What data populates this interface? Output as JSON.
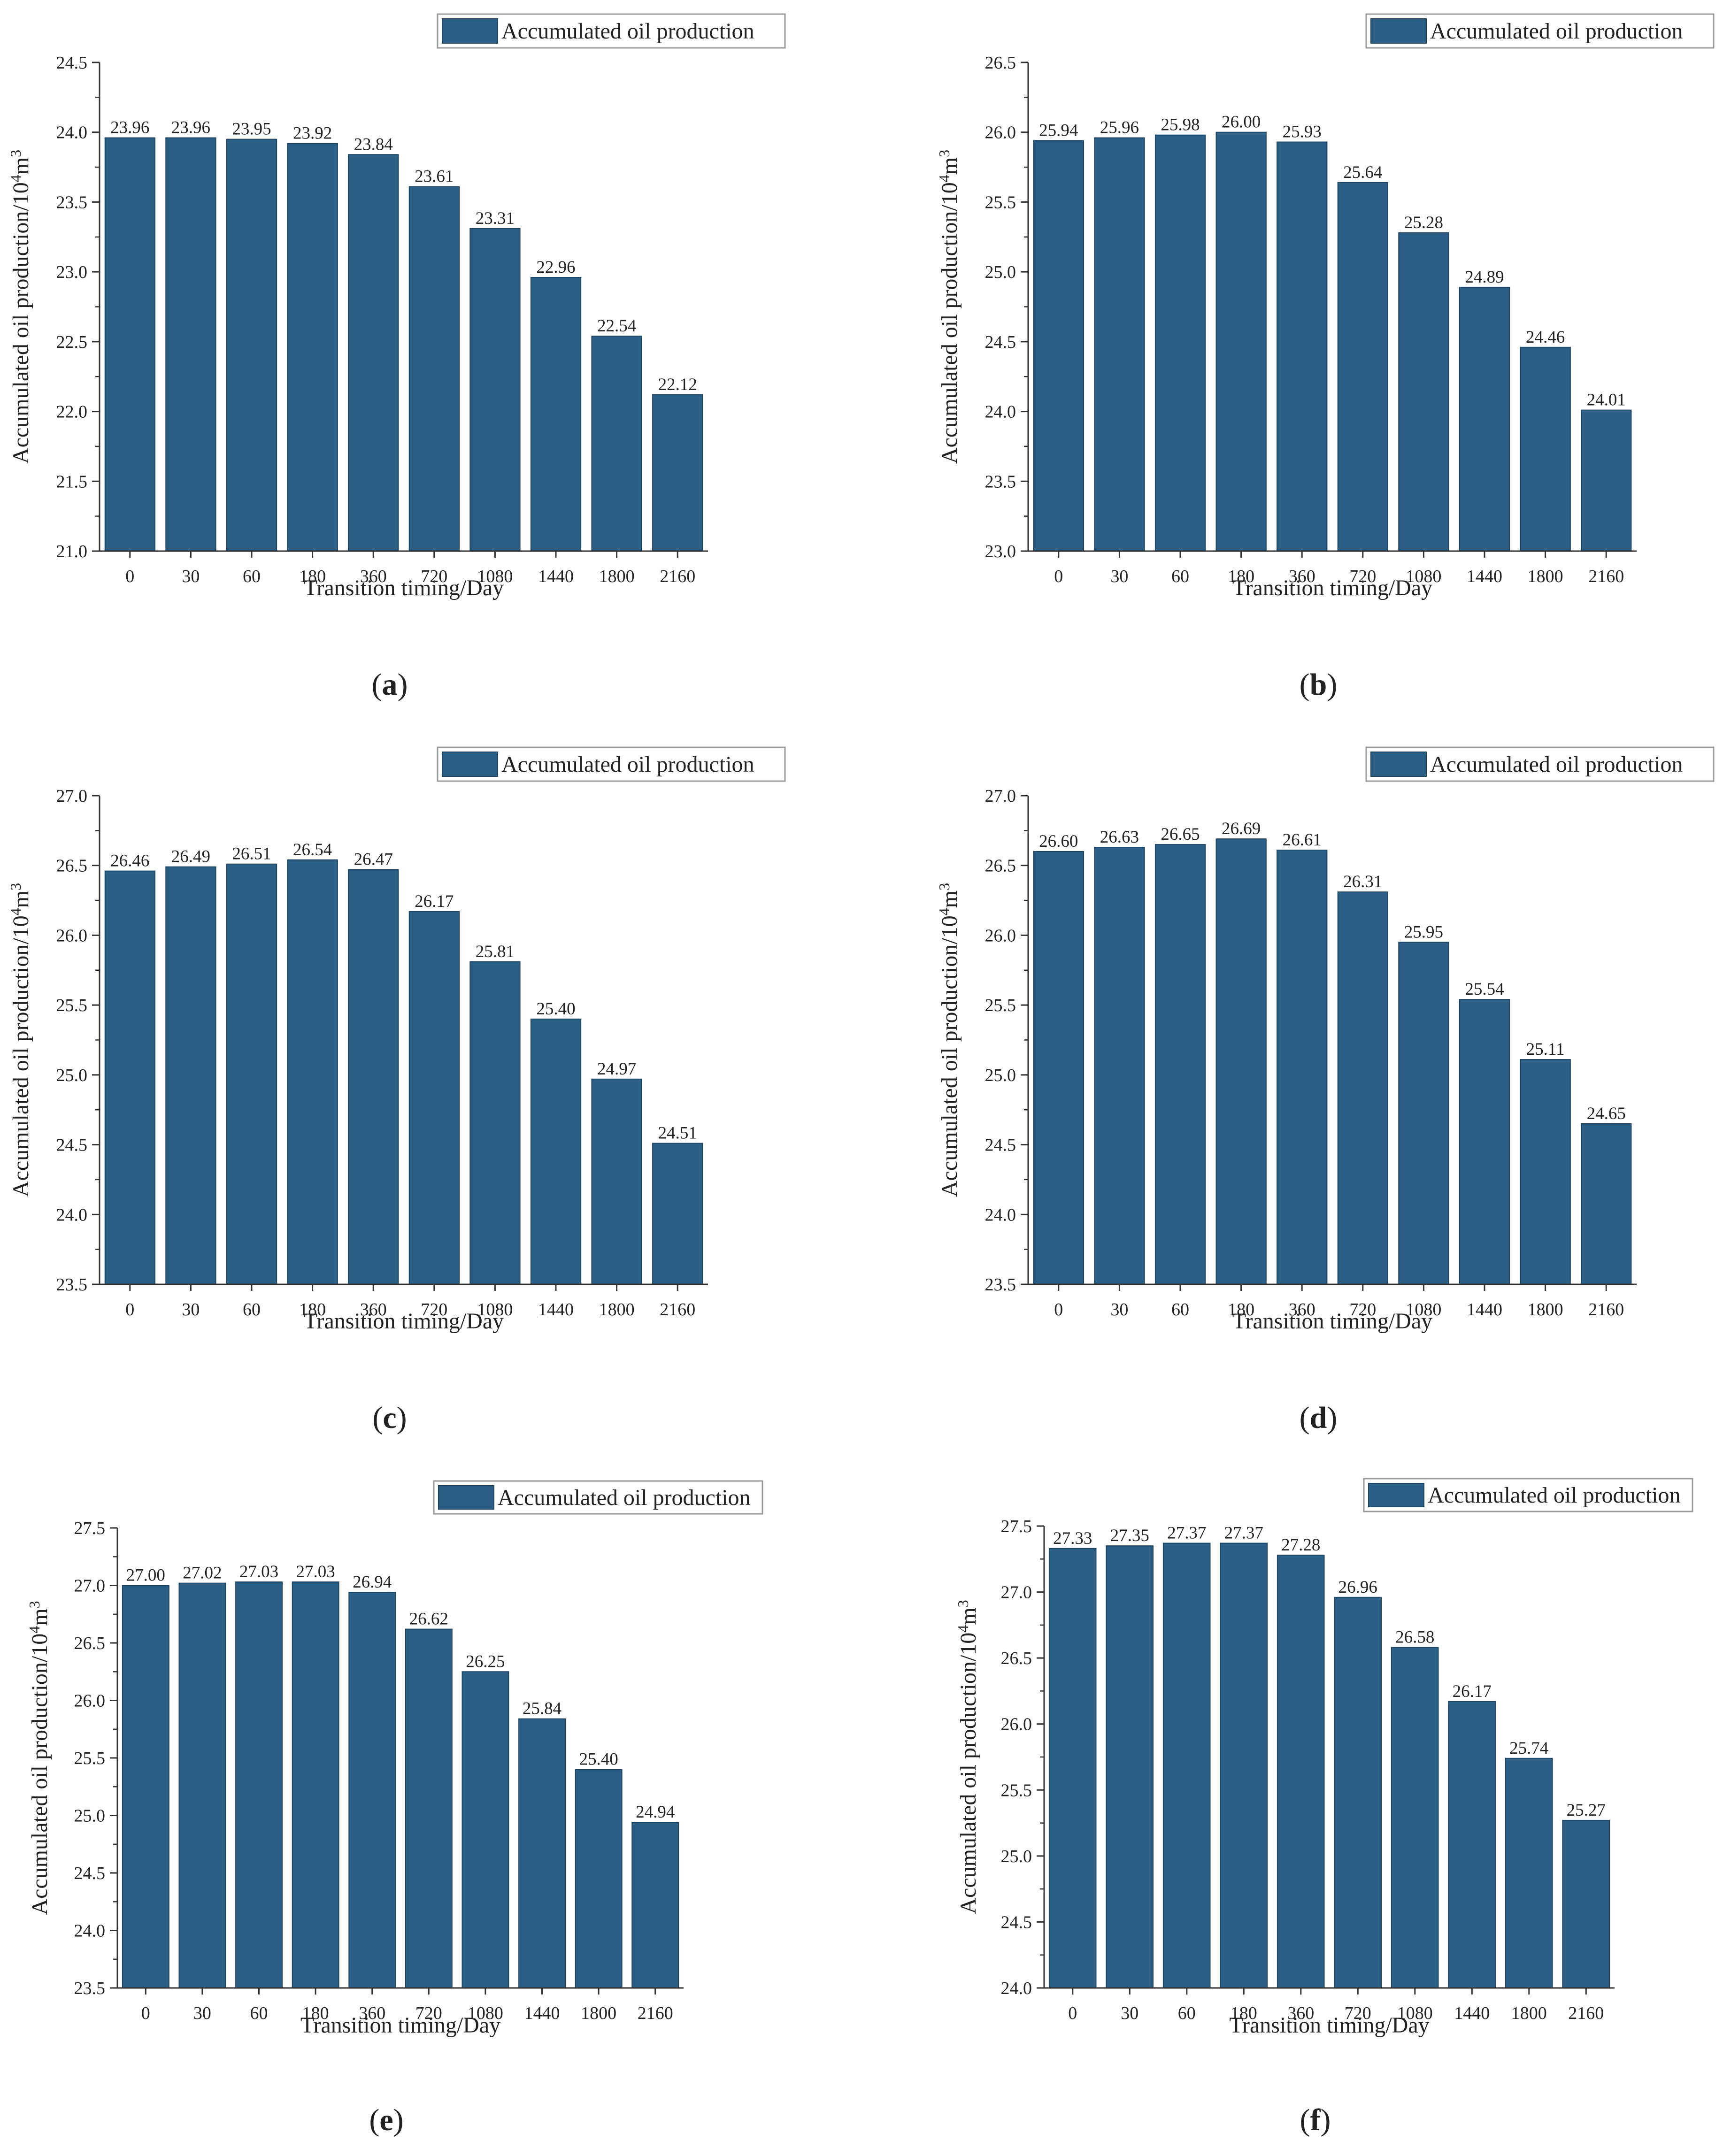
{
  "figure": {
    "bar_color": "#2b5f86",
    "axis_color": "#333333",
    "legend_border_color": "#9a9a9a"
  },
  "chart_data": [
    {
      "panel": "a",
      "type": "bar",
      "categories": [
        "0",
        "30",
        "60",
        "180",
        "360",
        "720",
        "1080",
        "1440",
        "1800",
        "2160"
      ],
      "series": [
        {
          "name": "Accumulated oil production",
          "values": [
            23.96,
            23.96,
            23.95,
            23.92,
            23.84,
            23.61,
            23.31,
            22.96,
            22.54,
            22.12
          ]
        }
      ],
      "value_labels": [
        "23.96",
        "23.96",
        "23.95",
        "23.92",
        "23.84",
        "23.61",
        "23.31",
        "22.96",
        "22.54",
        "22.12"
      ],
      "xlabel": "Transition timing/Day",
      "ylabel_main": "Accumulated oil production/10",
      "ylabel_sup1": "4",
      "ylabel_mid": "m",
      "ylabel_sup2": "3",
      "ylim": [
        21.0,
        24.5
      ],
      "yticks": [
        "21.0",
        "21.5",
        "22.0",
        "22.5",
        "23.0",
        "23.5",
        "24.0",
        "24.5"
      ],
      "legend": "Accumulated oil production",
      "legend_position": "top-right",
      "grid": false
    },
    {
      "panel": "b",
      "type": "bar",
      "categories": [
        "0",
        "30",
        "60",
        "180",
        "360",
        "720",
        "1080",
        "1440",
        "1800",
        "2160"
      ],
      "series": [
        {
          "name": "Accumulated oil production",
          "values": [
            25.94,
            25.96,
            25.98,
            26.0,
            25.93,
            25.64,
            25.28,
            24.89,
            24.46,
            24.01
          ]
        }
      ],
      "value_labels": [
        "25.94",
        "25.96",
        "25.98",
        "26.00",
        "25.93",
        "25.64",
        "25.28",
        "24.89",
        "24.46",
        "24.01"
      ],
      "xlabel": "Transition timing/Day",
      "ylabel_main": "Accumulated oil production/10",
      "ylabel_sup1": "4",
      "ylabel_mid": "m",
      "ylabel_sup2": "3",
      "ylim": [
        23.0,
        26.5
      ],
      "yticks": [
        "23.0",
        "23.5",
        "24.0",
        "24.5",
        "25.0",
        "25.5",
        "26.0",
        "26.5"
      ],
      "legend": "Accumulated oil production",
      "legend_position": "top-right",
      "grid": false
    },
    {
      "panel": "c",
      "type": "bar",
      "categories": [
        "0",
        "30",
        "60",
        "180",
        "360",
        "720",
        "1080",
        "1440",
        "1800",
        "2160"
      ],
      "series": [
        {
          "name": "Accumulated oil production",
          "values": [
            26.46,
            26.49,
            26.51,
            26.54,
            26.47,
            26.17,
            25.81,
            25.4,
            24.97,
            24.51
          ]
        }
      ],
      "value_labels": [
        "26.46",
        "26.49",
        "26.51",
        "26.54",
        "26.47",
        "26.17",
        "25.81",
        "25.40",
        "24.97",
        "24.51"
      ],
      "xlabel": "Transition timing/Day",
      "ylabel_main": "Accumulated oil production/10",
      "ylabel_sup1": "4",
      "ylabel_mid": "m",
      "ylabel_sup2": "3",
      "ylim": [
        23.5,
        27.0
      ],
      "yticks": [
        "23.5",
        "24.0",
        "24.5",
        "25.0",
        "25.5",
        "26.0",
        "26.5",
        "27.0"
      ],
      "legend": "Accumulated oil production",
      "legend_position": "top-right",
      "grid": false
    },
    {
      "panel": "d",
      "type": "bar",
      "categories": [
        "0",
        "30",
        "60",
        "180",
        "360",
        "720",
        "1080",
        "1440",
        "1800",
        "2160"
      ],
      "series": [
        {
          "name": "Accumulated oil production",
          "values": [
            26.6,
            26.63,
            26.65,
            26.69,
            26.61,
            26.31,
            25.95,
            25.54,
            25.11,
            24.65
          ]
        }
      ],
      "value_labels": [
        "26.60",
        "26.63",
        "26.65",
        "26.69",
        "26.61",
        "26.31",
        "25.95",
        "25.54",
        "25.11",
        "24.65"
      ],
      "xlabel": "Transition timing/Day",
      "ylabel_main": "Accumulated oil production/10",
      "ylabel_sup1": "4",
      "ylabel_mid": "m",
      "ylabel_sup2": "3",
      "ylim": [
        23.5,
        27.0
      ],
      "yticks": [
        "23.5",
        "24.0",
        "24.5",
        "25.0",
        "25.5",
        "26.0",
        "26.5",
        "27.0"
      ],
      "legend": "Accumulated oil production",
      "legend_position": "top-right",
      "grid": false
    },
    {
      "panel": "e",
      "type": "bar",
      "categories": [
        "0",
        "30",
        "60",
        "180",
        "360",
        "720",
        "1080",
        "1440",
        "1800",
        "2160"
      ],
      "series": [
        {
          "name": "Accumulated oil production",
          "values": [
            27.0,
            27.02,
            27.03,
            27.03,
            26.94,
            26.62,
            26.25,
            25.84,
            25.4,
            24.94
          ]
        }
      ],
      "value_labels": [
        "27.00",
        "27.02",
        "27.03",
        "27.03",
        "26.94",
        "26.62",
        "26.25",
        "25.84",
        "25.40",
        "24.94"
      ],
      "xlabel": "Transition timing/Day",
      "ylabel_main": "Accumulated oil production/10",
      "ylabel_sup1": "4",
      "ylabel_mid": "m",
      "ylabel_sup2": "3",
      "ylim": [
        23.5,
        27.5
      ],
      "yticks": [
        "23.5",
        "24.0",
        "24.5",
        "25.0",
        "25.5",
        "26.0",
        "26.5",
        "27.0",
        "27.5"
      ],
      "legend": "Accumulated oil production",
      "legend_position": "top-right",
      "grid": false
    },
    {
      "panel": "f",
      "type": "bar",
      "categories": [
        "0",
        "30",
        "60",
        "180",
        "360",
        "720",
        "1080",
        "1440",
        "1800",
        "2160"
      ],
      "series": [
        {
          "name": "Accumulated oil production",
          "values": [
            27.33,
            27.35,
            27.37,
            27.37,
            27.28,
            26.96,
            26.58,
            26.17,
            25.74,
            25.27
          ]
        }
      ],
      "value_labels": [
        "27.33",
        "27.35",
        "27.37",
        "27.37",
        "27.28",
        "26.96",
        "26.58",
        "26.17",
        "25.74",
        "25.27"
      ],
      "xlabel": "Transition timing/Day",
      "ylabel_main": "Accumulated oil production/10",
      "ylabel_sup1": "4",
      "ylabel_mid": "m",
      "ylabel_sup2": "3",
      "ylim": [
        24.0,
        27.5
      ],
      "yticks": [
        "24.0",
        "24.5",
        "25.0",
        "25.5",
        "26.0",
        "26.5",
        "27.0",
        "27.5"
      ],
      "legend": "Accumulated oil production",
      "legend_position": "top-right",
      "grid": false
    }
  ],
  "panel_labels": [
    {
      "open": "(",
      "letter": "a",
      "close": ")"
    },
    {
      "open": "(",
      "letter": "b",
      "close": ")"
    },
    {
      "open": "(",
      "letter": "c",
      "close": ")"
    },
    {
      "open": "(",
      "letter": "d",
      "close": ")"
    },
    {
      "open": "(",
      "letter": "e",
      "close": ")"
    },
    {
      "open": "(",
      "letter": "f",
      "close": ")"
    }
  ]
}
